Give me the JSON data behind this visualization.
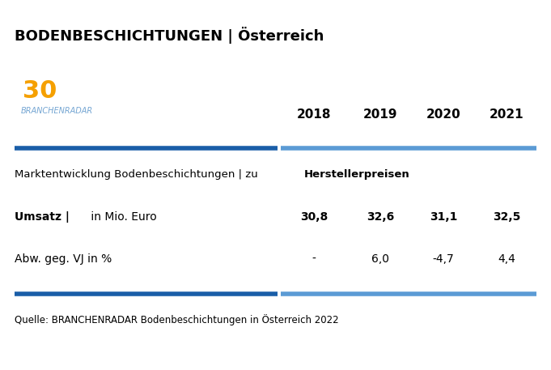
{
  "title": "BODENBESCHICHTUNGEN | Österreich",
  "years": [
    "2018",
    "2019",
    "2020",
    "2021"
  ],
  "section_label_normal": "Marktentwicklung Bodenbeschichtungen | zu ",
  "section_label_bold": "Herstellerpreisen",
  "row1_label_bold": "Umsatz |",
  "row1_label_normal": " in Mio. Euro",
  "row1_values": [
    "30,8",
    "32,6",
    "31,1",
    "32,5"
  ],
  "row2_label": "Abw. geg. VJ in %",
  "row2_values": [
    "-",
    "6,0",
    "-4,7",
    "4,4"
  ],
  "source": "Quelle: BRANCHENRADAR Bodenbeschichtungen in Österreich 2022",
  "blue_color": "#1A5EA8",
  "light_blue_color": "#5B9BD5",
  "bg_color": "#FFFFFF",
  "text_color": "#000000",
  "fig_width": 6.81,
  "fig_height": 4.57,
  "dpi": 100
}
